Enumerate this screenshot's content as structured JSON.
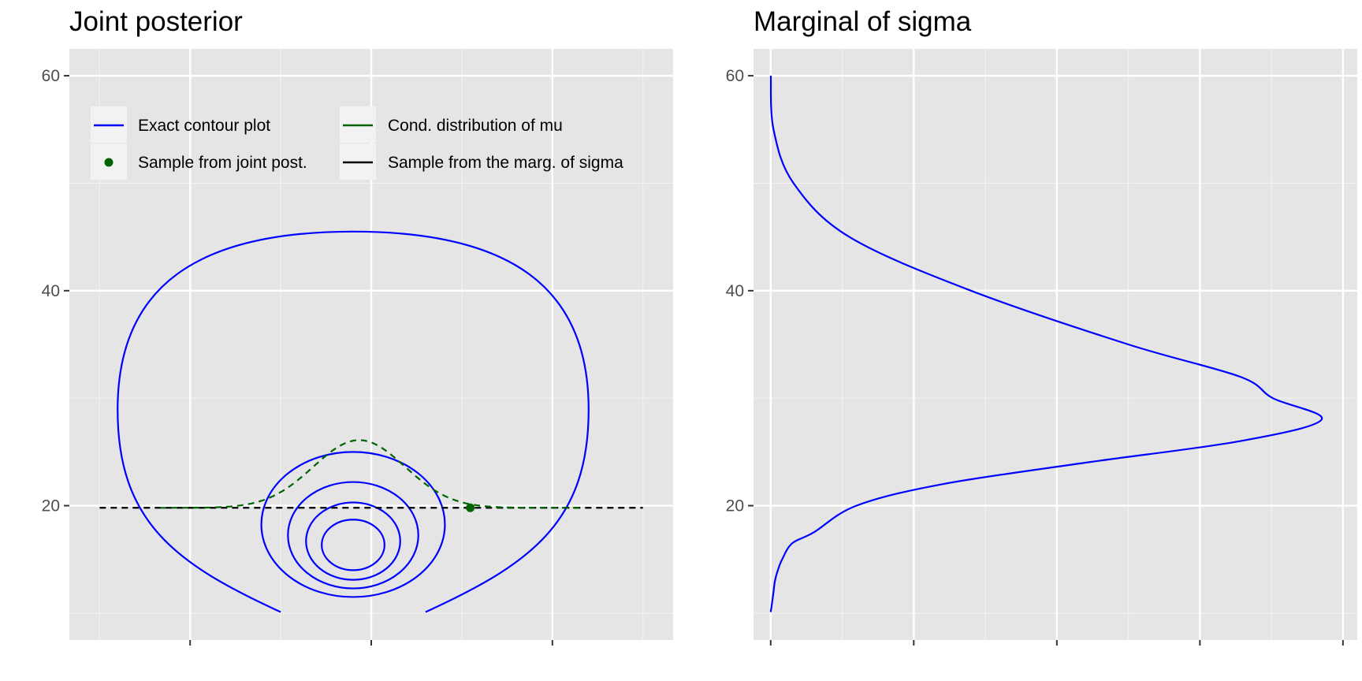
{
  "chart_data": [
    {
      "type": "line",
      "title": "Joint posterior",
      "xlabel": "",
      "ylabel": "",
      "xlim": [
        -2.5,
        2.5
      ],
      "ylim": [
        7.5,
        62.5
      ],
      "y_ticks": [
        "20",
        "40",
        "60"
      ],
      "x_ticks": [
        "",
        "",
        ""
      ],
      "grid": true,
      "legend": {
        "placement": "top",
        "entries": [
          {
            "label": "Exact contour plot",
            "kind": "line",
            "color": "#0000ff"
          },
          {
            "label": "Sample from joint post.",
            "kind": "point",
            "color": "#006400"
          },
          {
            "label": "Cond. distribution of mu",
            "kind": "line",
            "color": "#006400"
          },
          {
            "label": "Sample from the marg. of sigma",
            "kind": "line",
            "color": "#000000"
          }
        ]
      },
      "contours": {
        "color": "#0000ff",
        "center_mu": -0.15,
        "ellipses": [
          {
            "rx": 0.26,
            "ymin": 14.0,
            "ymax": 18.7
          },
          {
            "rx": 0.39,
            "ymin": 13.1,
            "ymax": 20.3
          },
          {
            "rx": 0.54,
            "ymin": 12.3,
            "ymax": 22.2
          },
          {
            "rx": 0.76,
            "ymin": 11.5,
            "ymax": 25.0
          }
        ],
        "open_level": {
          "rx": 1.95,
          "y_center": 29.3,
          "ymax": 45.5,
          "y_low": 10.1,
          "x_low_left": -0.75,
          "x_low_right": 0.45
        }
      },
      "sigma_sample": {
        "value": 19.8,
        "color": "#000000",
        "style": "dashed"
      },
      "cond_density": {
        "color": "#006400",
        "style": "dashed",
        "mean": -0.1,
        "sd": 0.38,
        "peak_height": 6.3
      },
      "joint_sample_point": {
        "mu": 0.82,
        "sigma": 19.8,
        "color": "#006400"
      }
    },
    {
      "type": "line",
      "title": "Marginal of sigma",
      "xlabel": "",
      "ylabel": "",
      "ylim": [
        7.5,
        62.5
      ],
      "y_ticks": [
        "20",
        "40",
        "60"
      ],
      "x_ticks": [
        "",
        "",
        "",
        ""
      ],
      "grid": true,
      "color": "#0000ff",
      "series": [
        {
          "x": [
            0.0008,
            0.02,
            0.16,
            0.55,
            1.4,
            2.5,
            3.28,
            3.51,
            3.85,
            3.28,
            2.2,
            1.2,
            0.6,
            0.3,
            0.15,
            0.08,
            0.05,
            0.03,
            0.02,
            0.01,
            0.005,
            0.002,
            0.0005
          ],
          "y": [
            60,
            55,
            50,
            45,
            40,
            35,
            32,
            30,
            28,
            26,
            24,
            22,
            20,
            17.5,
            16.5,
            15,
            14,
            13,
            12,
            11,
            10.5,
            10.3,
            10.1
          ]
        }
      ]
    }
  ]
}
